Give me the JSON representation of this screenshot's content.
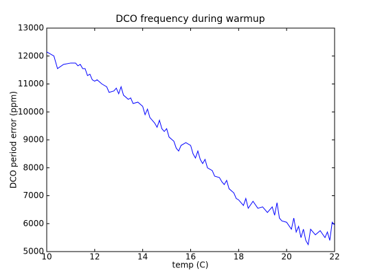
{
  "chart_data": {
    "type": "line",
    "title": "DCO frequency during warmup",
    "x_label": "temp (C)",
    "y_label": "DCO period error (ppm)",
    "x": [
      10,
      10.3,
      10.45,
      10.7,
      11,
      11.2,
      11.3,
      11.4,
      11.5,
      11.6,
      11.7,
      11.8,
      11.9,
      12.0,
      12.1,
      12.3,
      12.5,
      12.6,
      12.8,
      12.9,
      13.0,
      13.1,
      13.2,
      13.4,
      13.5,
      13.6,
      13.8,
      14.0,
      14.1,
      14.2,
      14.3,
      14.5,
      14.6,
      14.7,
      14.8,
      14.9,
      15.0,
      15.1,
      15.3,
      15.4,
      15.5,
      15.6,
      15.8,
      16.0,
      16.1,
      16.2,
      16.3,
      16.4,
      16.5,
      16.6,
      16.7,
      16.9,
      17.0,
      17.2,
      17.3,
      17.4,
      17.5,
      17.6,
      17.8,
      17.9,
      18.0,
      18.2,
      18.3,
      18.4,
      18.6,
      18.8,
      19.0,
      19.2,
      19.4,
      19.5,
      19.6,
      19.7,
      19.8,
      20.0,
      20.2,
      20.3,
      20.4,
      20.5,
      20.6,
      20.7,
      20.8,
      20.9,
      21.0,
      21.2,
      21.4,
      21.6,
      21.7,
      21.8,
      21.9,
      22.0
    ],
    "series": [
      {
        "name": "DCO period error",
        "color": "#0000ff",
        "values": [
          12150,
          12000,
          11550,
          11700,
          11750,
          11750,
          11650,
          11700,
          11550,
          11550,
          11300,
          11350,
          11150,
          11100,
          11150,
          11000,
          10900,
          10700,
          10750,
          10850,
          10650,
          10900,
          10600,
          10450,
          10500,
          10300,
          10350,
          10200,
          9900,
          10100,
          9800,
          9600,
          9450,
          9700,
          9400,
          9300,
          9400,
          9100,
          8950,
          8700,
          8600,
          8800,
          8900,
          8800,
          8500,
          8350,
          8600,
          8300,
          8150,
          8300,
          8000,
          7900,
          7700,
          7650,
          7500,
          7400,
          7550,
          7250,
          7100,
          6900,
          6850,
          6650,
          6900,
          6550,
          6800,
          6550,
          6600,
          6400,
          6600,
          6300,
          6750,
          6200,
          6100,
          6050,
          5800,
          6200,
          5700,
          5900,
          5500,
          5800,
          5400,
          5250,
          5800,
          5600,
          5750,
          5500,
          5700,
          5400,
          6050,
          5950
        ]
      }
    ],
    "xlim": [
      10,
      22
    ],
    "xticks": [
      10,
      12,
      14,
      16,
      18,
      20,
      22
    ],
    "ylim": [
      5000,
      13000
    ],
    "yticks": [
      5000,
      6000,
      7000,
      8000,
      9000,
      10000,
      11000,
      12000,
      13000
    ]
  }
}
